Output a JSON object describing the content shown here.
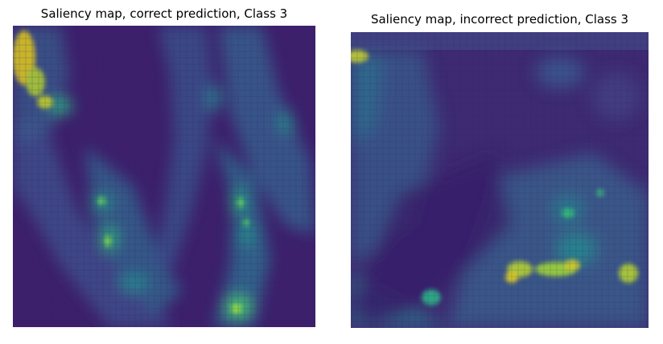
{
  "panels": [
    {
      "title": "Saliency map, correct prediction, Class 3",
      "colormap": "viridis"
    },
    {
      "title": "Saliency map, incorrect prediction, Class 3",
      "colormap": "viridis"
    }
  ],
  "colors": {
    "background": "#ffffff",
    "viridis_low": "#440154",
    "viridis_mid_low": "#3b528b",
    "viridis_mid": "#21918c",
    "viridis_mid_high": "#5ec962",
    "viridis_high": "#fde725"
  }
}
